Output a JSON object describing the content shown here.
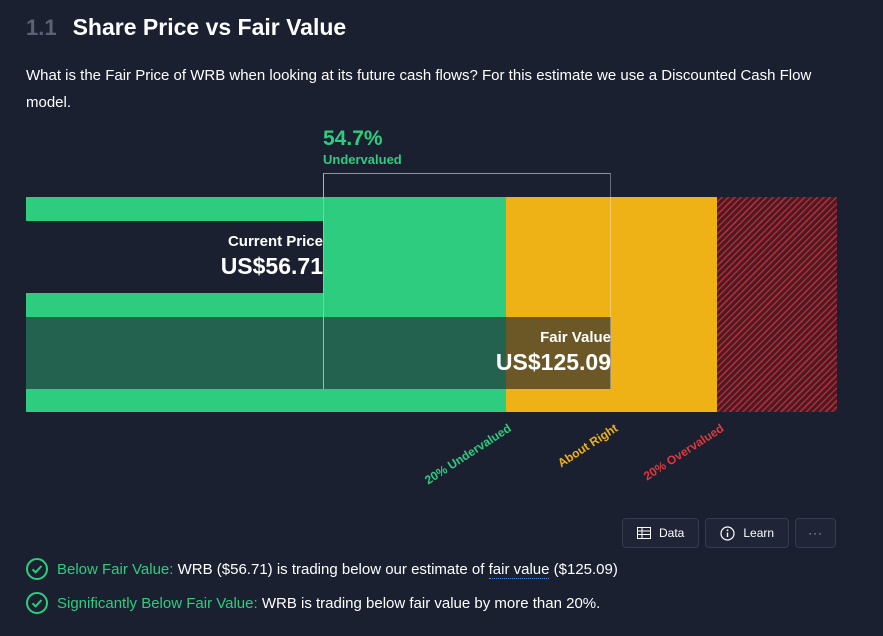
{
  "section": {
    "number": "1.1",
    "title": "Share Price vs Fair Value"
  },
  "description": "What is the Fair Price of WRB when looking at its future cash flows? For this estimate we use a Discounted Cash Flow model.",
  "chart_data": {
    "type": "bar",
    "categories": [
      "Current Price",
      "Fair Value"
    ],
    "values": [
      56.71,
      125.09
    ],
    "value_labels": [
      "US$56.71",
      "US$125.09"
    ],
    "difference": {
      "value": "54.7%",
      "label": "Undervalued"
    },
    "zones": [
      "20% Undervalued",
      "About Right",
      "20% Overvalued"
    ],
    "colors": {
      "undervalued": "#2ecc7f",
      "about_right": "#eeb116",
      "overvalued": "#e0383e"
    }
  },
  "buttons": {
    "data": "Data",
    "learn": "Learn",
    "more": "···"
  },
  "checks": [
    {
      "label": "Below Fair Value:",
      "pre": "WRB ($56.71) is trading below our estimate of ",
      "link": "fair value",
      "post": " ($125.09)"
    },
    {
      "label": "Significantly Below Fair Value:",
      "pre": "WRB is trading below fair value by more than 20%.",
      "link": "",
      "post": ""
    }
  ]
}
